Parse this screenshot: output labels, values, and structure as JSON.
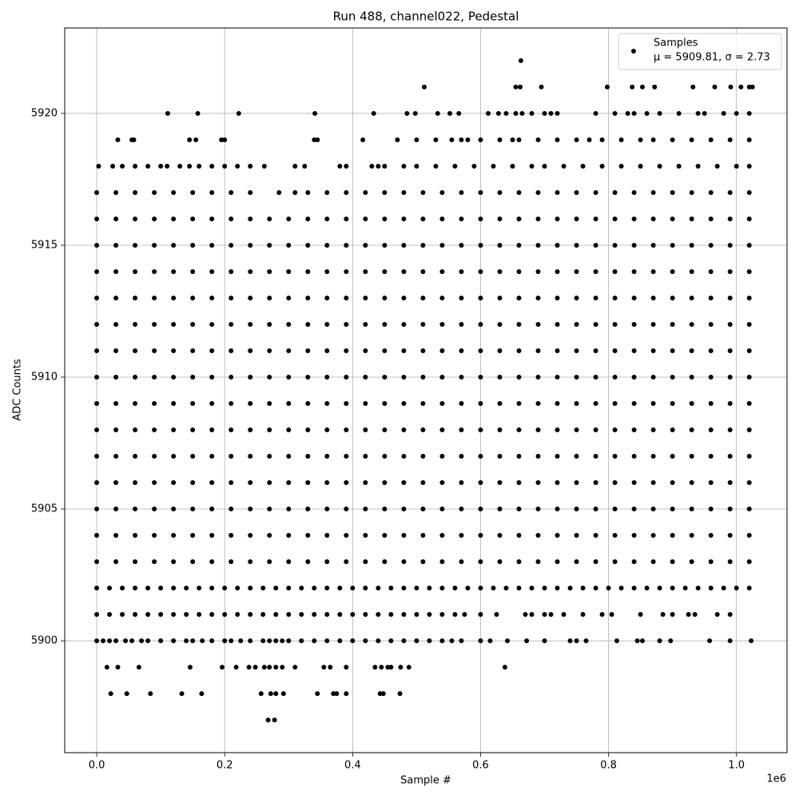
{
  "chart_data": {
    "type": "scatter",
    "title": "Run 488, channel022, Pedestal",
    "x_label": "Sample #",
    "y_label": "ADC Counts",
    "x_offset_label": "1e6",
    "xlim": [
      -0.05,
      1.079
    ],
    "ylim": [
      5895.76,
      5923.24
    ],
    "xticks": [
      {
        "value": 0,
        "label": "0.0"
      },
      0.2,
      0.4,
      0.6,
      0.8,
      {
        "value": 1,
        "label": "1.0"
      }
    ],
    "yticks": [
      5900,
      5905,
      5910,
      5915,
      5920
    ],
    "grid": true,
    "legend_position": "upper right",
    "series": [
      {
        "name": "Samples",
        "stats": "μ = 5909.81, σ = 2.73",
        "color": "#000000"
      }
    ],
    "rows": [
      {
        "y": 5897,
        "x": [
          0.268,
          0.278
        ]
      },
      {
        "y": 5898,
        "x": [
          0.022,
          0.047,
          0.084,
          0.133,
          0.164,
          0.257,
          0.272,
          0.28,
          0.292,
          0.345,
          0.37,
          0.375,
          0.39,
          0.443,
          0.448,
          0.474
        ]
      },
      {
        "y": 5899,
        "x": [
          0.016,
          0.033,
          0.066,
          0.146,
          0.196,
          0.218,
          0.238,
          0.248,
          0.262,
          0.27,
          0.28,
          0.29,
          0.31,
          0.355,
          0.365,
          0.39,
          0.435,
          0.445,
          0.455,
          0.46,
          0.475,
          0.488,
          0.638
        ]
      },
      {
        "y": 5900,
        "x": [
          0,
          0.01,
          0.02,
          0.03,
          0.045,
          0.055,
          0.07,
          0.08,
          0.1,
          0.12,
          0.14,
          0.15,
          0.165,
          0.18,
          0.2,
          0.21,
          0.225,
          0.24,
          0.26,
          0.27,
          0.28,
          0.29,
          0.3,
          0.32,
          0.34,
          0.36,
          0.38,
          0.4,
          0.42,
          0.44,
          0.46,
          0.48,
          0.5,
          0.52,
          0.54,
          0.555,
          0.57,
          0.6,
          0.615,
          0.642,
          0.672,
          0.7,
          0.74,
          0.75,
          0.765,
          0.813,
          0.845,
          0.853,
          0.88,
          0.897,
          0.958,
          0.99,
          1.023
        ]
      },
      {
        "y": 5901,
        "x": [
          0,
          0.02,
          0.04,
          0.06,
          0.08,
          0.1,
          0.12,
          0.14,
          0.16,
          0.18,
          0.2,
          0.22,
          0.24,
          0.26,
          0.28,
          0.3,
          0.32,
          0.34,
          0.36,
          0.38,
          0.4,
          0.42,
          0.44,
          0.46,
          0.48,
          0.5,
          0.52,
          0.54,
          0.56,
          0.575,
          0.6,
          0.625,
          0.67,
          0.68,
          0.7,
          0.71,
          0.73,
          0.76,
          0.79,
          0.805,
          0.85,
          0.885,
          0.9,
          0.925,
          0.935,
          0.97,
          0.99
        ]
      },
      {
        "y": 5902,
        "x": [
          0,
          0.02,
          0.04,
          0.06,
          0.08,
          0.1,
          0.12,
          0.14,
          0.16,
          0.18,
          0.2,
          0.22,
          0.24,
          0.26,
          0.28,
          0.3,
          0.32,
          0.34,
          0.36,
          0.38,
          0.4,
          0.42,
          0.44,
          0.46,
          0.48,
          0.5,
          0.52,
          0.54,
          0.56,
          0.58,
          0.6,
          0.62,
          0.64,
          0.66,
          0.68,
          0.7,
          0.72,
          0.74,
          0.76,
          0.78,
          0.8,
          0.82,
          0.84,
          0.86,
          0.88,
          0.9,
          0.92,
          0.94,
          0.96,
          0.98,
          1.0,
          1.02
        ]
      },
      {
        "y": 5903,
        "x": [
          0,
          0.03,
          0.06,
          0.09,
          0.12,
          0.15,
          0.18,
          0.21,
          0.24,
          0.27,
          0.3,
          0.33,
          0.36,
          0.39,
          0.42,
          0.45,
          0.48,
          0.51,
          0.54,
          0.57,
          0.6,
          0.63,
          0.66,
          0.69,
          0.72,
          0.75,
          0.78,
          0.81,
          0.84,
          0.87,
          0.9,
          0.93,
          0.96,
          0.99,
          1.02
        ]
      },
      {
        "y": 5904,
        "x": [
          0,
          0.03,
          0.06,
          0.09,
          0.12,
          0.15,
          0.18,
          0.21,
          0.24,
          0.27,
          0.3,
          0.33,
          0.36,
          0.39,
          0.42,
          0.45,
          0.48,
          0.51,
          0.54,
          0.57,
          0.6,
          0.63,
          0.66,
          0.69,
          0.72,
          0.75,
          0.78,
          0.81,
          0.84,
          0.87,
          0.9,
          0.93,
          0.96,
          0.99,
          1.02
        ]
      },
      {
        "y": 5905,
        "x": [
          0,
          0.03,
          0.06,
          0.09,
          0.12,
          0.15,
          0.18,
          0.21,
          0.24,
          0.27,
          0.3,
          0.33,
          0.36,
          0.39,
          0.42,
          0.45,
          0.48,
          0.51,
          0.54,
          0.57,
          0.6,
          0.63,
          0.66,
          0.69,
          0.72,
          0.75,
          0.78,
          0.81,
          0.84,
          0.87,
          0.9,
          0.93,
          0.96,
          0.99,
          1.02
        ]
      },
      {
        "y": 5906,
        "x": [
          0,
          0.03,
          0.06,
          0.09,
          0.12,
          0.15,
          0.18,
          0.21,
          0.24,
          0.27,
          0.3,
          0.33,
          0.36,
          0.39,
          0.42,
          0.45,
          0.48,
          0.51,
          0.54,
          0.57,
          0.6,
          0.63,
          0.66,
          0.69,
          0.72,
          0.75,
          0.78,
          0.81,
          0.84,
          0.87,
          0.9,
          0.93,
          0.96,
          0.99,
          1.02
        ]
      },
      {
        "y": 5907,
        "x": [
          0,
          0.03,
          0.06,
          0.09,
          0.12,
          0.15,
          0.18,
          0.21,
          0.24,
          0.27,
          0.3,
          0.33,
          0.36,
          0.39,
          0.42,
          0.45,
          0.48,
          0.51,
          0.54,
          0.57,
          0.6,
          0.63,
          0.66,
          0.69,
          0.72,
          0.75,
          0.78,
          0.81,
          0.84,
          0.87,
          0.9,
          0.93,
          0.96,
          0.99,
          1.02
        ]
      },
      {
        "y": 5908,
        "x": [
          0,
          0.03,
          0.06,
          0.09,
          0.12,
          0.15,
          0.18,
          0.21,
          0.24,
          0.27,
          0.3,
          0.33,
          0.36,
          0.39,
          0.42,
          0.45,
          0.48,
          0.51,
          0.54,
          0.57,
          0.6,
          0.63,
          0.66,
          0.69,
          0.72,
          0.75,
          0.78,
          0.81,
          0.84,
          0.87,
          0.9,
          0.93,
          0.96,
          0.99,
          1.02
        ]
      },
      {
        "y": 5909,
        "x": [
          0,
          0.03,
          0.06,
          0.09,
          0.12,
          0.15,
          0.18,
          0.21,
          0.24,
          0.27,
          0.3,
          0.33,
          0.36,
          0.39,
          0.42,
          0.45,
          0.48,
          0.51,
          0.54,
          0.57,
          0.6,
          0.63,
          0.66,
          0.69,
          0.72,
          0.75,
          0.78,
          0.81,
          0.84,
          0.87,
          0.9,
          0.93,
          0.96,
          0.99,
          1.02
        ]
      },
      {
        "y": 5910,
        "x": [
          0,
          0.03,
          0.06,
          0.09,
          0.12,
          0.15,
          0.18,
          0.21,
          0.24,
          0.27,
          0.3,
          0.33,
          0.36,
          0.39,
          0.42,
          0.45,
          0.48,
          0.51,
          0.54,
          0.57,
          0.6,
          0.63,
          0.66,
          0.69,
          0.72,
          0.75,
          0.78,
          0.81,
          0.84,
          0.87,
          0.9,
          0.93,
          0.96,
          0.99,
          1.02
        ]
      },
      {
        "y": 5911,
        "x": [
          0,
          0.03,
          0.06,
          0.09,
          0.12,
          0.15,
          0.18,
          0.21,
          0.24,
          0.27,
          0.3,
          0.33,
          0.36,
          0.39,
          0.42,
          0.45,
          0.48,
          0.51,
          0.54,
          0.57,
          0.6,
          0.63,
          0.66,
          0.69,
          0.72,
          0.75,
          0.78,
          0.81,
          0.84,
          0.87,
          0.9,
          0.93,
          0.96,
          0.99,
          1.02
        ]
      },
      {
        "y": 5912,
        "x": [
          0,
          0.03,
          0.06,
          0.09,
          0.12,
          0.15,
          0.18,
          0.21,
          0.24,
          0.27,
          0.3,
          0.33,
          0.36,
          0.39,
          0.42,
          0.45,
          0.48,
          0.51,
          0.54,
          0.57,
          0.6,
          0.63,
          0.66,
          0.69,
          0.72,
          0.75,
          0.78,
          0.81,
          0.84,
          0.87,
          0.9,
          0.93,
          0.96,
          0.99,
          1.02
        ]
      },
      {
        "y": 5913,
        "x": [
          0,
          0.03,
          0.06,
          0.09,
          0.12,
          0.15,
          0.18,
          0.21,
          0.24,
          0.27,
          0.3,
          0.33,
          0.36,
          0.39,
          0.42,
          0.45,
          0.48,
          0.51,
          0.54,
          0.57,
          0.6,
          0.63,
          0.66,
          0.69,
          0.72,
          0.75,
          0.78,
          0.81,
          0.84,
          0.87,
          0.9,
          0.93,
          0.96,
          0.99,
          1.02
        ]
      },
      {
        "y": 5914,
        "x": [
          0,
          0.03,
          0.06,
          0.09,
          0.12,
          0.15,
          0.18,
          0.21,
          0.24,
          0.27,
          0.3,
          0.33,
          0.36,
          0.39,
          0.42,
          0.45,
          0.48,
          0.51,
          0.54,
          0.57,
          0.6,
          0.63,
          0.66,
          0.69,
          0.72,
          0.75,
          0.78,
          0.81,
          0.84,
          0.87,
          0.9,
          0.93,
          0.96,
          0.99,
          1.02
        ]
      },
      {
        "y": 5915,
        "x": [
          0,
          0.03,
          0.06,
          0.09,
          0.12,
          0.15,
          0.18,
          0.21,
          0.24,
          0.27,
          0.3,
          0.33,
          0.36,
          0.39,
          0.42,
          0.45,
          0.48,
          0.51,
          0.54,
          0.57,
          0.6,
          0.63,
          0.66,
          0.69,
          0.72,
          0.75,
          0.78,
          0.81,
          0.84,
          0.87,
          0.9,
          0.93,
          0.96,
          0.99,
          1.02
        ]
      },
      {
        "y": 5916,
        "x": [
          0,
          0.03,
          0.06,
          0.09,
          0.12,
          0.15,
          0.18,
          0.21,
          0.24,
          0.27,
          0.3,
          0.33,
          0.36,
          0.39,
          0.42,
          0.45,
          0.48,
          0.51,
          0.54,
          0.57,
          0.6,
          0.63,
          0.66,
          0.69,
          0.72,
          0.75,
          0.78,
          0.81,
          0.84,
          0.87,
          0.9,
          0.93,
          0.96,
          0.99,
          1.02
        ]
      },
      {
        "y": 5917,
        "x": [
          0,
          0.03,
          0.06,
          0.09,
          0.12,
          0.15,
          0.18,
          0.21,
          0.24,
          0.285,
          0.31,
          0.33,
          0.36,
          0.39,
          0.42,
          0.45,
          0.48,
          0.51,
          0.54,
          0.57,
          0.6,
          0.63,
          0.66,
          0.69,
          0.72,
          0.75,
          0.78,
          0.81,
          0.84,
          0.87,
          0.9,
          0.93,
          0.96,
          0.99,
          1.02
        ]
      },
      {
        "y": 5918,
        "x": [
          0.003,
          0.025,
          0.04,
          0.06,
          0.08,
          0.1,
          0.11,
          0.13,
          0.145,
          0.16,
          0.18,
          0.2,
          0.22,
          0.24,
          0.262,
          0.31,
          0.325,
          0.38,
          0.39,
          0.43,
          0.44,
          0.45,
          0.48,
          0.5,
          0.53,
          0.56,
          0.59,
          0.62,
          0.65,
          0.68,
          0.7,
          0.73,
          0.76,
          0.79,
          0.82,
          0.85,
          0.88,
          0.91,
          0.94,
          0.97,
          1.0,
          1.02
        ]
      },
      {
        "y": 5919,
        "x": [
          0.033,
          0.055,
          0.058,
          0.145,
          0.155,
          0.195,
          0.2,
          0.34,
          0.345,
          0.416,
          0.47,
          0.5,
          0.53,
          0.555,
          0.57,
          0.58,
          0.6,
          0.63,
          0.65,
          0.66,
          0.69,
          0.72,
          0.75,
          0.77,
          0.79,
          0.82,
          0.85,
          0.87,
          0.9,
          0.93,
          0.96,
          0.99,
          1.02
        ]
      },
      {
        "y": 5920,
        "x": [
          0.111,
          0.158,
          0.222,
          0.341,
          0.433,
          0.485,
          0.498,
          0.533,
          0.552,
          0.566,
          0.612,
          0.628,
          0.64,
          0.655,
          0.665,
          0.68,
          0.7,
          0.71,
          0.72,
          0.78,
          0.81,
          0.83,
          0.84,
          0.86,
          0.88,
          0.91,
          0.94,
          0.95,
          0.98,
          1.0,
          1.02
        ]
      },
      {
        "y": 5921,
        "x": [
          0.512,
          0.655,
          0.662,
          0.695,
          0.798,
          0.837,
          0.853,
          0.872,
          0.932,
          0.966,
          0.991,
          1.007,
          1.02,
          1.025
        ]
      },
      {
        "y": 5922,
        "x": [
          0.663
        ]
      }
    ]
  }
}
